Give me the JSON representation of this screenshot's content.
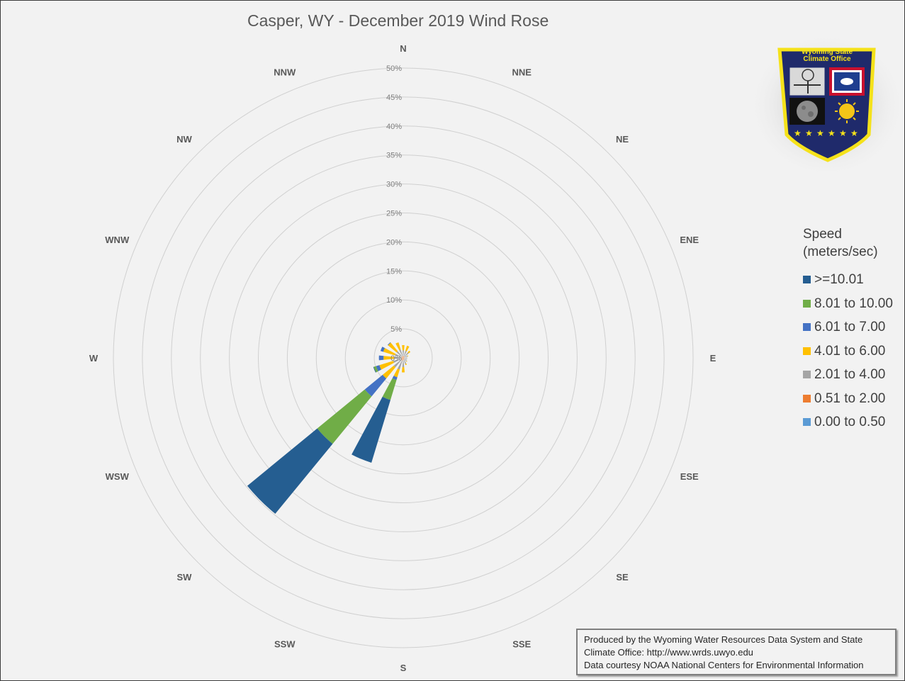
{
  "chart_data": {
    "type": "radar",
    "title": "Casper, WY - December 2019 Wind Rose",
    "directions": [
      "N",
      "NNE",
      "NE",
      "ENE",
      "E",
      "ESE",
      "SE",
      "SSE",
      "S",
      "SSW",
      "SW",
      "WSW",
      "W",
      "WNW",
      "NW",
      "NNW"
    ],
    "radial_ticks": [
      "0%",
      "5%",
      "10%",
      "15%",
      "20%",
      "25%",
      "30%",
      "35%",
      "40%",
      "45%",
      "50%"
    ],
    "rlim": [
      0,
      50
    ],
    "stacked": true,
    "series": [
      {
        "name": "0.00 to 0.50",
        "color": "#5b9bd5",
        "values": [
          0,
          0,
          0,
          0,
          0,
          0,
          0,
          0,
          0,
          0,
          0,
          0,
          0,
          0,
          0,
          0
        ]
      },
      {
        "name": "0.51 to 2.00",
        "color": "#ed7d31",
        "values": [
          0.3,
          0.3,
          0.3,
          0.2,
          0.2,
          0.2,
          0.2,
          0.3,
          0.4,
          0.5,
          0.5,
          0.4,
          0.3,
          0.3,
          0.3,
          0.3
        ]
      },
      {
        "name": "2.01 to 4.00",
        "color": "#a5a5a5",
        "values": [
          1.0,
          1.0,
          0.9,
          0.6,
          0.5,
          0.5,
          0.6,
          0.8,
          1.2,
          1.6,
          1.6,
          1.4,
          1.2,
          1.2,
          1.2,
          1.2
        ]
      },
      {
        "name": "4.01 to 6.00",
        "color": "#ffc000",
        "values": [
          0.9,
          0.9,
          0.4,
          0.1,
          0,
          0,
          0.1,
          0.2,
          0.9,
          1.4,
          2.5,
          2.5,
          1.9,
          2.1,
          1.9,
          1.3
        ]
      },
      {
        "name": "6.01 to 7.00",
        "color": "#4472c4",
        "values": [
          0,
          0,
          0,
          0,
          0,
          0,
          0,
          0,
          0,
          0.5,
          4.0,
          0.6,
          0.8,
          0.5,
          0.1,
          0
        ]
      },
      {
        "name": "8.01 to 10.00",
        "color": "#70ad47",
        "values": [
          0,
          0,
          0,
          0,
          0,
          0,
          0,
          0,
          0,
          3.6,
          10.6,
          0.4,
          0,
          0,
          0,
          0
        ]
      },
      {
        "name": ">=10.01",
        "color": "#255e91",
        "values": [
          0,
          0,
          0,
          0,
          0,
          0,
          0,
          0,
          0,
          11.3,
          15.6,
          0.1,
          0,
          0,
          0,
          0
        ]
      }
    ]
  },
  "legend": {
    "title": "Speed (meters/sec)",
    "items": [
      {
        "label": ">=10.01",
        "color": "#255e91"
      },
      {
        "label": "8.01 to 10.00",
        "color": "#70ad47"
      },
      {
        "label": "6.01 to 7.00",
        "color": "#4472c4"
      },
      {
        "label": "4.01 to 6.00",
        "color": "#ffc000"
      },
      {
        "label": "2.01 to 4.00",
        "color": "#a5a5a5"
      },
      {
        "label": "0.51 to 2.00",
        "color": "#ed7d31"
      },
      {
        "label": "0.00 to 0.50",
        "color": "#5b9bd5"
      }
    ]
  },
  "logo": {
    "line1": "Wyoming State",
    "line2": "Climate Office",
    "colors": {
      "navy": "#1f2a6b",
      "yellow": "#f5e21a",
      "flag_red": "#c8102e"
    }
  },
  "credits": {
    "line1": "Produced by the Wyoming Water Resources Data System and State",
    "line2": "Climate Office: http://www.wrds.uwyo.edu",
    "line3": "Data courtesy NOAA National Centers for Environmental Information"
  }
}
